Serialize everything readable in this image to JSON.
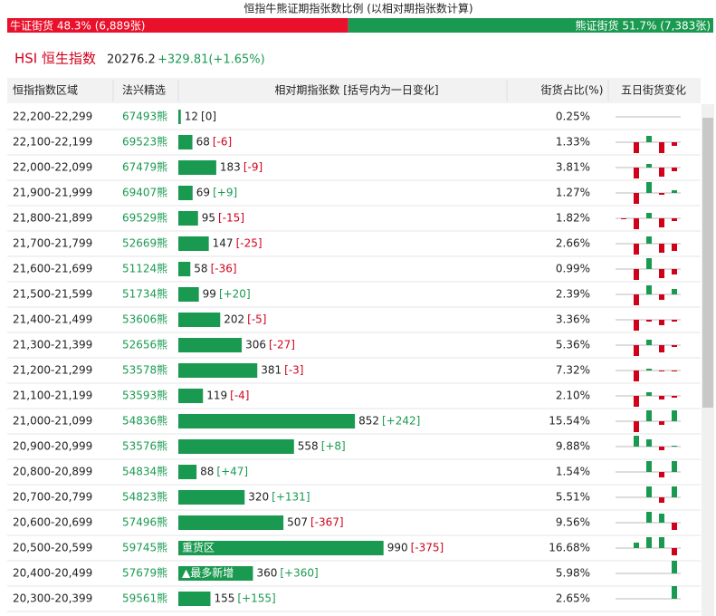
{
  "header": {
    "title": "恒指牛熊证期指张数比例 (以相对期指张数计算)",
    "bull": {
      "label": "牛证街货 48.3% (6,889张)",
      "value": 48.3
    },
    "bear": {
      "label": "熊证街货 51.7% (7,383张)",
      "value": 51.7
    }
  },
  "index": {
    "name": "HSI 恒生指数",
    "price": "20276.2",
    "change": "+329.81(+1.65%)"
  },
  "table": {
    "columns": [
      "恒指指数区域",
      "法兴精选",
      "相对期指张数 [括号内为一日变化]",
      "街货占比(%)",
      "五日街货变化"
    ],
    "rows": [
      {
        "range": "22,200-22,299",
        "code": "67493熊",
        "count": 12,
        "change": "[0]",
        "share": "0.25%",
        "five_day": [
          0,
          0,
          0,
          0,
          0
        ]
      },
      {
        "range": "22,100-22,199",
        "code": "69523熊",
        "count": 68,
        "change": "[-6]",
        "share": "1.33%",
        "five_day": [
          0,
          -12,
          7,
          -12,
          -4
        ]
      },
      {
        "range": "22,000-22,099",
        "code": "67479熊",
        "count": 183,
        "change": "[-9]",
        "share": "3.81%",
        "five_day": [
          0,
          -12,
          4,
          -10,
          -4
        ]
      },
      {
        "range": "21,900-21,999",
        "code": "69407熊",
        "count": 69,
        "change": "[+9]",
        "share": "1.27%",
        "five_day": [
          0,
          -12,
          12,
          -2,
          3
        ]
      },
      {
        "range": "21,800-21,899",
        "code": "69529熊",
        "count": 95,
        "change": "[-15]",
        "share": "1.82%",
        "five_day": [
          -1,
          -12,
          6,
          -10,
          -3
        ]
      },
      {
        "range": "21,700-21,799",
        "code": "52669熊",
        "count": 147,
        "change": "[-25]",
        "share": "2.66%",
        "five_day": [
          0,
          -12,
          8,
          -10,
          -8
        ]
      },
      {
        "range": "21,600-21,699",
        "code": "51124熊",
        "count": 58,
        "change": "[-36]",
        "share": "0.99%",
        "five_day": [
          0,
          -12,
          12,
          -10,
          -6
        ]
      },
      {
        "range": "21,500-21,599",
        "code": "51734熊",
        "count": 99,
        "change": "[+20]",
        "share": "2.39%",
        "five_day": [
          0,
          -12,
          10,
          -6,
          6
        ]
      },
      {
        "range": "21,400-21,499",
        "code": "53606熊",
        "count": 202,
        "change": "[-5]",
        "share": "3.36%",
        "five_day": [
          0,
          -12,
          -2,
          -6,
          -2
        ]
      },
      {
        "range": "21,300-21,399",
        "code": "52656熊",
        "count": 306,
        "change": "[-27]",
        "share": "5.36%",
        "five_day": [
          0,
          -12,
          6,
          -8,
          -2
        ]
      },
      {
        "range": "21,200-21,299",
        "code": "53578熊",
        "count": 381,
        "change": "[-3]",
        "share": "7.32%",
        "five_day": [
          0,
          -12,
          2,
          -1,
          -1
        ]
      },
      {
        "range": "21,100-21,199",
        "code": "53593熊",
        "count": 119,
        "change": "[-4]",
        "share": "2.10%",
        "five_day": [
          0,
          -12,
          4,
          -4,
          -2
        ]
      },
      {
        "range": "21,000-21,099",
        "code": "54836熊",
        "count": 852,
        "change": "[+242]",
        "share": "15.54%",
        "five_day": [
          0,
          -12,
          12,
          -4,
          12
        ]
      },
      {
        "range": "20,900-20,999",
        "code": "53576熊",
        "count": 558,
        "change": "[+8]",
        "share": "9.88%",
        "five_day": [
          0,
          12,
          8,
          -4,
          1
        ]
      },
      {
        "range": "20,800-20,899",
        "code": "54834熊",
        "count": 88,
        "change": "[+47]",
        "share": "1.54%",
        "five_day": [
          0,
          0,
          12,
          -6,
          12
        ]
      },
      {
        "range": "20,700-20,799",
        "code": "54823熊",
        "count": 320,
        "change": "[+131]",
        "share": "5.51%",
        "five_day": [
          0,
          0,
          12,
          -6,
          12
        ]
      },
      {
        "range": "20,600-20,699",
        "code": "57496熊",
        "count": 507,
        "change": "[-367]",
        "share": "9.56%",
        "five_day": [
          0,
          0,
          12,
          10,
          -8
        ]
      },
      {
        "range": "20,500-20,599",
        "code": "59745熊",
        "count": 990,
        "change": "[-375]",
        "share": "16.68%",
        "tag": "重货区",
        "five_day": [
          0,
          6,
          12,
          12,
          -8
        ]
      },
      {
        "range": "20,400-20,499",
        "code": "57679熊",
        "count": 360,
        "change": "[+360]",
        "share": "5.98%",
        "tag": "▲最多新增",
        "five_day": [
          0,
          0,
          0,
          0,
          14
        ]
      },
      {
        "range": "20,300-20,399",
        "code": "59561熊",
        "count": 155,
        "change": "[+155]",
        "share": "2.65%",
        "five_day": [
          0,
          0,
          0,
          0,
          14
        ]
      }
    ]
  }
}
